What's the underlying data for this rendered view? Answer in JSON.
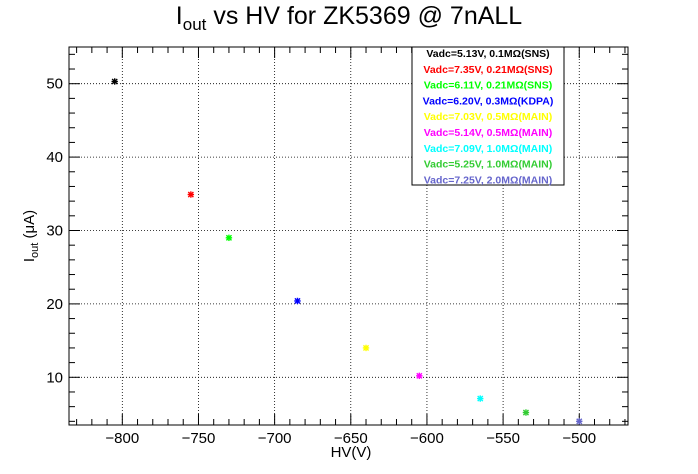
{
  "chart_data": {
    "type": "scatter",
    "title_main": "I",
    "title_sub": "out",
    "title_rest": " vs HV for ZK5369 @ 7nALL",
    "xlabel": "HV(V)",
    "ylabel_main": "I",
    "ylabel_sub": "out",
    "ylabel_rest": " (μA)",
    "xlim": [
      -835,
      -468
    ],
    "ylim": [
      3.5,
      55
    ],
    "x_ticks": [
      -800,
      -750,
      -700,
      -650,
      -600,
      -550,
      -500
    ],
    "x_tick_labels": [
      "−800",
      "−750",
      "−700",
      "−650",
      "−600",
      "−550",
      "−500"
    ],
    "y_ticks": [
      10,
      20,
      30,
      40,
      50
    ],
    "y_tick_labels": [
      "10",
      "20",
      "30",
      "40",
      "50"
    ],
    "grid": true,
    "legend_position": "top-right",
    "series": [
      {
        "name": "Vadc=5.13V, 0.1MΩ(SNS)",
        "color": "#000000",
        "x": [
          -805
        ],
        "y": [
          50.3
        ]
      },
      {
        "name": "Vadc=7.35V, 0.21MΩ(SNS)",
        "color": "#ff0000",
        "x": [
          -755
        ],
        "y": [
          34.9
        ]
      },
      {
        "name": "Vadc=6.11V, 0.21MΩ(SNS)",
        "color": "#00ff00",
        "x": [
          -730
        ],
        "y": [
          29.0
        ]
      },
      {
        "name": "Vadc=6.20V, 0.3MΩ(KDPA)",
        "color": "#0000ff",
        "x": [
          -685
        ],
        "y": [
          20.4
        ]
      },
      {
        "name": "Vadc=7.03V, 0.5MΩ(MAIN)",
        "color": "#ffff00",
        "x": [
          -640
        ],
        "y": [
          14.0
        ]
      },
      {
        "name": "Vadc=5.14V, 0.5MΩ(MAIN)",
        "color": "#ff00ff",
        "x": [
          -605
        ],
        "y": [
          10.2
        ]
      },
      {
        "name": "Vadc=7.09V, 1.0MΩ(MAIN)",
        "color": "#00ffff",
        "x": [
          -565
        ],
        "y": [
          7.1
        ]
      },
      {
        "name": "Vadc=5.25V, 1.0MΩ(MAIN)",
        "color": "#33cc33",
        "x": [
          -535
        ],
        "y": [
          5.2
        ]
      },
      {
        "name": "Vadc=7.25V, 2.0MΩ(MAIN)",
        "color": "#6666cc",
        "x": [
          -500
        ],
        "y": [
          4.0
        ]
      }
    ]
  }
}
